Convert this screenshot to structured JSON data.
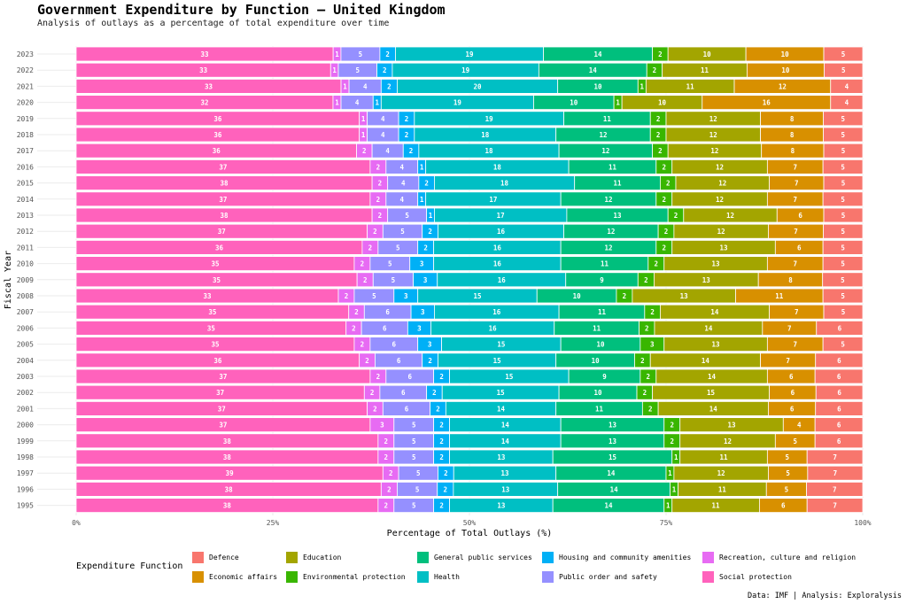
{
  "title": "Government Expenditure by Function — United Kingdom",
  "subtitle": "Analysis of outlays as a percentage of total expenditure over time",
  "caption": "Data: IMF | Analysis: Exploralysis",
  "chart_data": {
    "type": "bar",
    "orientation": "horizontal",
    "stacked": true,
    "xlabel": "Percentage of Total Outlays (%)",
    "ylabel": "Fiscal Year",
    "xlim": [
      0,
      100
    ],
    "xticks": [
      "0%",
      "25%",
      "50%",
      "75%",
      "100%"
    ],
    "legend_title": "Expenditure Function",
    "legend_position": "bottom",
    "categories": [
      "2023",
      "2022",
      "2021",
      "2020",
      "2019",
      "2018",
      "2017",
      "2016",
      "2015",
      "2014",
      "2013",
      "2012",
      "2011",
      "2010",
      "2009",
      "2008",
      "2007",
      "2006",
      "2005",
      "2004",
      "2003",
      "2002",
      "2001",
      "2000",
      "1999",
      "1998",
      "1997",
      "1996",
      "1995"
    ],
    "series": [
      {
        "name": "Social protection",
        "color": "#FF62BC",
        "values": [
          33,
          33,
          33,
          32,
          36,
          36,
          36,
          37,
          38,
          37,
          38,
          37,
          36,
          35,
          35,
          33,
          35,
          35,
          35,
          36,
          37,
          37,
          37,
          37,
          38,
          38,
          39,
          38,
          38
        ]
      },
      {
        "name": "Recreation, culture and religion",
        "color": "#E76BF3",
        "values": [
          1,
          1,
          1,
          1,
          1,
          1,
          2,
          2,
          2,
          2,
          2,
          2,
          2,
          2,
          2,
          2,
          2,
          2,
          2,
          2,
          2,
          2,
          2,
          3,
          2,
          2,
          2,
          2,
          2
        ]
      },
      {
        "name": "Public order and safety",
        "color": "#9590FF",
        "values": [
          5,
          5,
          4,
          4,
          4,
          4,
          4,
          4,
          4,
          4,
          5,
          5,
          5,
          5,
          5,
          5,
          6,
          6,
          6,
          6,
          6,
          6,
          6,
          5,
          5,
          5,
          5,
          5,
          5
        ]
      },
      {
        "name": "Housing and community amenities",
        "color": "#00B0F6",
        "values": [
          2,
          2,
          2,
          1,
          2,
          2,
          2,
          1,
          2,
          1,
          1,
          2,
          2,
          3,
          3,
          3,
          3,
          3,
          3,
          2,
          2,
          2,
          2,
          2,
          2,
          2,
          2,
          2,
          2
        ]
      },
      {
        "name": "Health",
        "color": "#00BFC4",
        "values": [
          19,
          19,
          20,
          19,
          19,
          18,
          18,
          18,
          18,
          17,
          17,
          16,
          16,
          16,
          16,
          15,
          16,
          16,
          15,
          15,
          15,
          15,
          14,
          14,
          14,
          13,
          13,
          13,
          13
        ]
      },
      {
        "name": "General public services",
        "color": "#00BF7D",
        "values": [
          14,
          14,
          10,
          10,
          11,
          12,
          12,
          11,
          11,
          12,
          13,
          12,
          12,
          11,
          9,
          10,
          11,
          11,
          10,
          10,
          9,
          10,
          11,
          13,
          13,
          15,
          14,
          14,
          14
        ]
      },
      {
        "name": "Environmental protection",
        "color": "#39B600",
        "values": [
          2,
          2,
          1,
          1,
          2,
          2,
          2,
          2,
          2,
          2,
          2,
          2,
          2,
          2,
          2,
          2,
          2,
          2,
          3,
          2,
          2,
          2,
          2,
          2,
          2,
          1,
          1,
          1,
          1
        ]
      },
      {
        "name": "Education",
        "color": "#A3A500",
        "values": [
          10,
          11,
          11,
          10,
          12,
          12,
          12,
          12,
          12,
          12,
          12,
          12,
          13,
          13,
          13,
          13,
          14,
          14,
          13,
          14,
          14,
          15,
          14,
          13,
          12,
          11,
          12,
          11,
          11
        ]
      },
      {
        "name": "Economic affairs",
        "color": "#D89000",
        "values": [
          10,
          10,
          12,
          16,
          8,
          8,
          8,
          7,
          7,
          7,
          6,
          7,
          6,
          7,
          8,
          11,
          7,
          7,
          7,
          7,
          6,
          6,
          6,
          4,
          5,
          5,
          5,
          5,
          6
        ]
      },
      {
        "name": "Defence",
        "color": "#F8766D",
        "values": [
          5,
          5,
          4,
          4,
          5,
          5,
          5,
          5,
          5,
          5,
          5,
          5,
          5,
          5,
          5,
          5,
          5,
          6,
          5,
          6,
          6,
          6,
          6,
          6,
          6,
          7,
          7,
          7,
          7
        ]
      }
    ],
    "legend_order": [
      "Defence",
      "Education",
      "General public services",
      "Housing and community amenities",
      "Recreation, culture and religion",
      "Economic affairs",
      "Environmental protection",
      "Health",
      "Public order and safety",
      "Social protection"
    ]
  }
}
